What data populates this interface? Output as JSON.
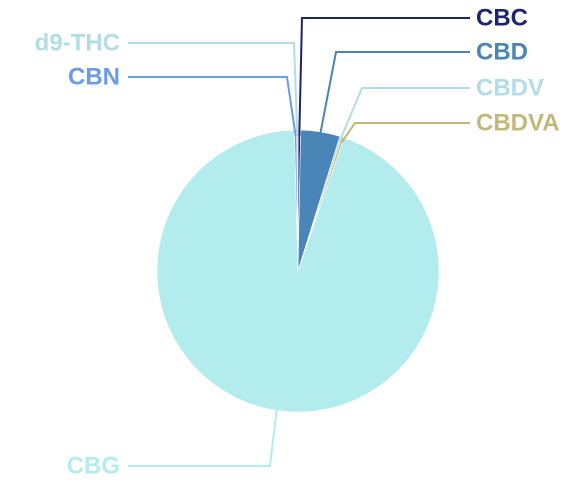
{
  "chart_data": {
    "type": "pie",
    "title": "",
    "start_angle_deg": 0,
    "direction": "clockwise",
    "legend": "none",
    "slices": [
      {
        "label": "CBC",
        "value": 0.3,
        "color": "#1e2470"
      },
      {
        "label": "CBD",
        "value": 4.5,
        "color": "#4a85b8"
      },
      {
        "label": "CBDV",
        "value": 0.25,
        "color": "#b2dde6"
      },
      {
        "label": "CBDVA",
        "value": 0.25,
        "color": "#c4b878"
      },
      {
        "label": "CBG",
        "value": 94.3,
        "color": "#b3eced"
      },
      {
        "label": "CBN",
        "value": 0.25,
        "color": "#6a9be6"
      },
      {
        "label": "d9-THC",
        "value": 0.15,
        "color": "#b2dde6"
      }
    ]
  }
}
